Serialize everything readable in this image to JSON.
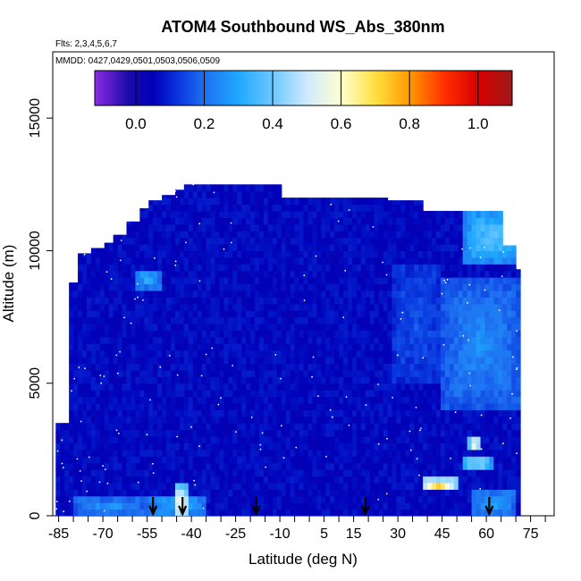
{
  "chart_data": {
    "type": "heatmap",
    "title": "ATOM4 Southbound WS_Abs_380nm",
    "flights_note": "Flts: 2,3,4,5,6,7",
    "dates_note": "MMDD: 0427,0429,0501,0503,0506,0509",
    "xlabel": "Latitude (deg N)",
    "ylabel": "Altitude (m)",
    "xlim": [
      -87,
      83
    ],
    "ylim": [
      0,
      17500
    ],
    "x_ticks": [
      -85,
      -70,
      -55,
      -40,
      -25,
      -10,
      5,
      15,
      30,
      45,
      60,
      75
    ],
    "x_tick_labels": [
      "-85",
      "-70",
      "-55",
      "-40",
      "-25",
      "-10",
      "5",
      "15",
      "30",
      "45",
      "60",
      "75"
    ],
    "x_minor_step": 5,
    "y_ticks": [
      0,
      5000,
      10000,
      15000
    ],
    "y_tick_labels": [
      "0",
      "5000",
      "10000",
      "15000"
    ],
    "colorbar": {
      "range": [
        -0.12,
        1.1
      ],
      "ticks": [
        0.0,
        0.2,
        0.4,
        0.6,
        0.8,
        1.0
      ],
      "tick_labels": [
        "0.0",
        "0.2",
        "0.4",
        "0.6",
        "0.8",
        "1.0"
      ],
      "color_stops": [
        {
          "value": -0.12,
          "color": "#8a2be2"
        },
        {
          "value": -0.02,
          "color": "#1a0aa8"
        },
        {
          "value": 0.05,
          "color": "#0000b8"
        },
        {
          "value": 0.13,
          "color": "#0a3ae0"
        },
        {
          "value": 0.2,
          "color": "#1e6ff0"
        },
        {
          "value": 0.3,
          "color": "#1ea8ff"
        },
        {
          "value": 0.4,
          "color": "#6cc8ff"
        },
        {
          "value": 0.5,
          "color": "#cfeaff"
        },
        {
          "value": 0.6,
          "color": "#ffffd0"
        },
        {
          "value": 0.7,
          "color": "#ffe040"
        },
        {
          "value": 0.8,
          "color": "#ff9a00"
        },
        {
          "value": 0.9,
          "color": "#ff3000"
        },
        {
          "value": 1.0,
          "color": "#d80000"
        },
        {
          "value": 1.1,
          "color": "#a01818"
        }
      ]
    },
    "sounding_latitudes": [
      -53,
      -43,
      -18,
      19,
      61
    ],
    "profile_extent": {
      "latitudes": [
        -86,
        -82,
        -78,
        -74,
        -70,
        -66,
        -62,
        -58,
        -54,
        -50,
        -46,
        -42,
        -38,
        -34,
        -30,
        -26,
        -22,
        -18,
        -14,
        -10,
        -6,
        -2,
        2,
        6,
        10,
        14,
        18,
        22,
        26,
        30,
        34,
        38,
        42,
        46,
        50,
        54,
        58,
        62,
        66,
        70,
        72
      ],
      "top_altitudes": [
        3500,
        8800,
        9900,
        10100,
        10300,
        10600,
        11100,
        11600,
        11900,
        12100,
        12300,
        12500,
        12500,
        12500,
        12500,
        12500,
        12500,
        12500,
        12500,
        12000,
        12000,
        12000,
        12000,
        12000,
        12000,
        12000,
        12000,
        12000,
        11900,
        11900,
        11900,
        11500,
        11500,
        11500,
        11500,
        11500,
        11500,
        11500,
        10200,
        9300,
        6000
      ]
    },
    "background_value": 0.06,
    "features": [
      {
        "lat": [
          52,
          72
        ],
        "alt": [
          9500,
          11600
        ],
        "value": 0.4
      },
      {
        "lat": [
          45,
          72
        ],
        "alt": [
          4000,
          9000
        ],
        "value": 0.26
      },
      {
        "lat": [
          28,
          45
        ],
        "alt": [
          5000,
          9500
        ],
        "value": 0.16
      },
      {
        "lat": [
          -55,
          -35
        ],
        "alt": [
          0,
          800
        ],
        "value": 0.33
      },
      {
        "lat": [
          -46,
          -41
        ],
        "alt": [
          0,
          1200
        ],
        "value": 0.6
      },
      {
        "lat": [
          -80,
          -55
        ],
        "alt": [
          0,
          700
        ],
        "value": 0.28
      },
      {
        "lat": [
          55,
          70
        ],
        "alt": [
          0,
          1000
        ],
        "value": 0.3
      },
      {
        "lat": [
          54,
          58
        ],
        "alt": [
          2400,
          3000
        ],
        "value": 0.65
      },
      {
        "lat": [
          52,
          62
        ],
        "alt": [
          1700,
          2300
        ],
        "value": 0.48
      },
      {
        "lat": [
          38,
          50
        ],
        "alt": [
          900,
          1400
        ],
        "value": 0.78
      },
      {
        "lat": [
          -59,
          -50
        ],
        "alt": [
          8600,
          9300
        ],
        "value": 0.33
      }
    ]
  }
}
